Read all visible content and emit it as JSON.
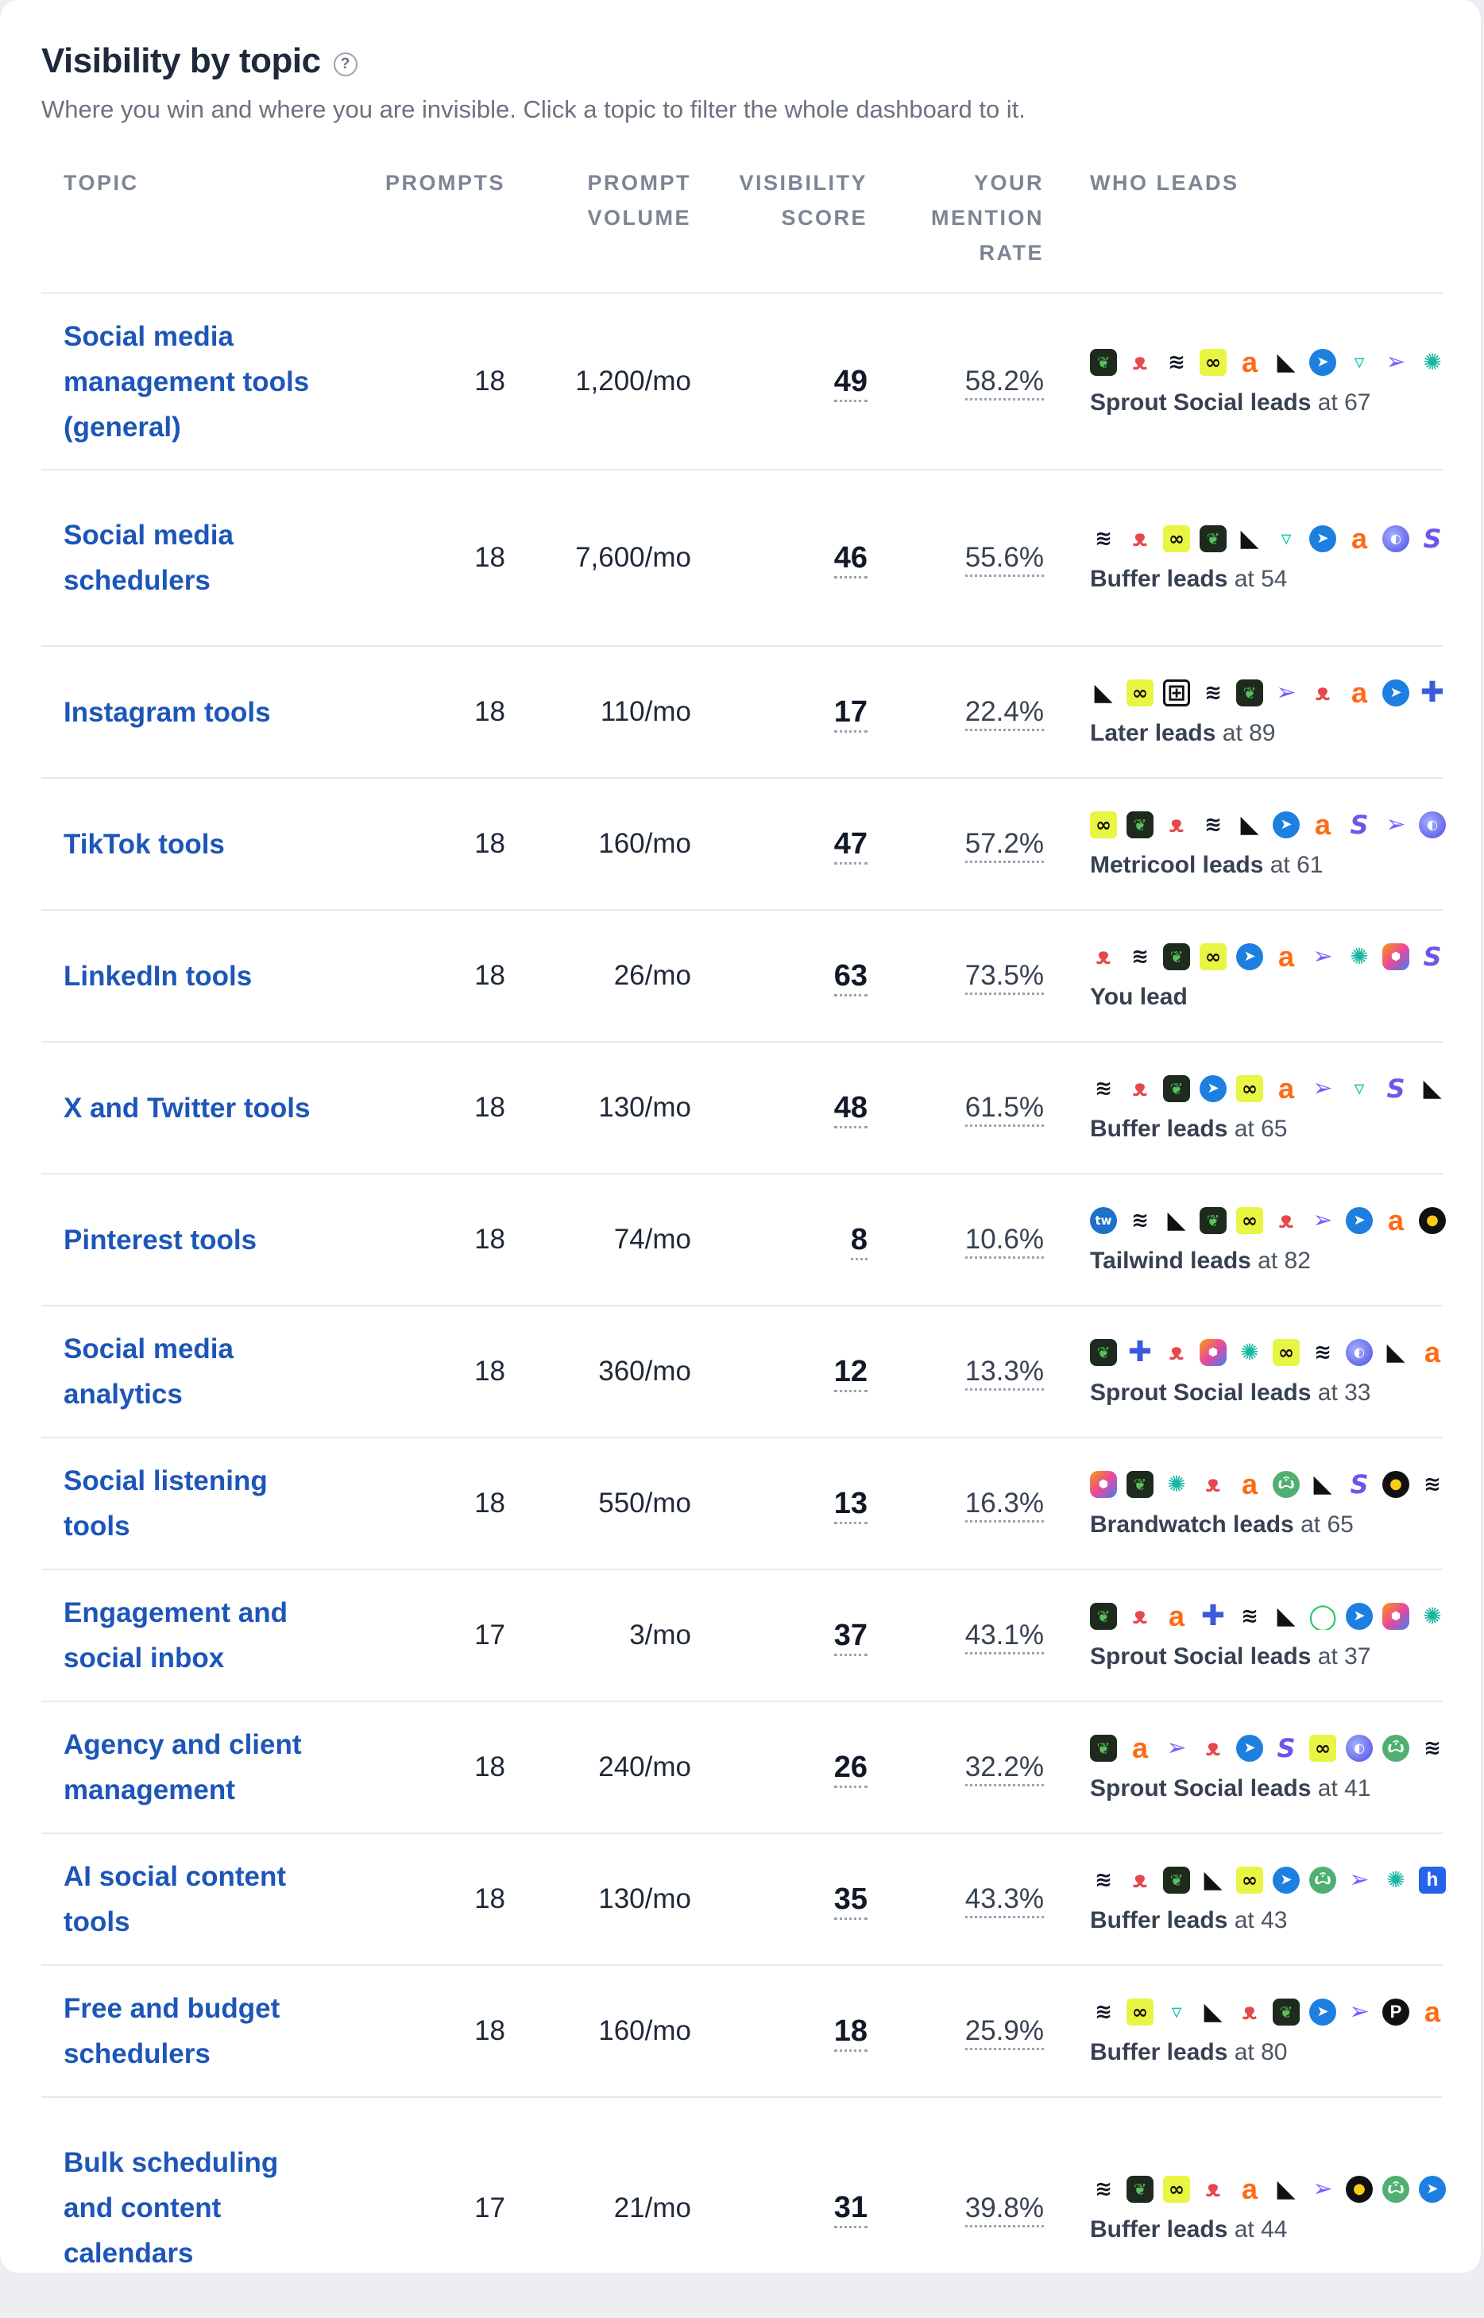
{
  "header": {
    "title": "Visibility by topic",
    "help": "?",
    "subtitle": "Where you win and where you are invisible. Click a topic to filter the whole dashboard to it."
  },
  "columns": {
    "topic": "TOPIC",
    "prompts": "PROMPTS",
    "volume_line1": "PROMPT",
    "volume_line2": "VOLUME",
    "score_line1": "VISIBILITY",
    "score_line2": "SCORE",
    "mention_line1": "YOUR",
    "mention_line2": "MENTION",
    "mention_line3": "RATE",
    "leads": "WHO LEADS"
  },
  "rows": [
    {
      "topic": "Social media management tools (general)",
      "prompts": "18",
      "volume": "1,200/mo",
      "score": "49",
      "mention": "58.2%",
      "leader": "Sprout Social leads",
      "leader_at": "at 67",
      "icons": [
        "sprout",
        "hootsuite",
        "buffer",
        "metricool",
        "later",
        "ssf",
        "telegram",
        "socialbee",
        "arrow",
        "leaf"
      ]
    },
    {
      "topic": "Social media schedulers",
      "prompts": "18",
      "volume": "7,600/mo",
      "score": "46",
      "mention": "55.6%",
      "leader": "Buffer leads",
      "leader_at": "at 54",
      "icons": [
        "buffer",
        "hootsuite",
        "metricool",
        "sprout",
        "ssf",
        "socialbee",
        "telegram",
        "later",
        "globe",
        "s"
      ]
    },
    {
      "topic": "Instagram tools",
      "prompts": "18",
      "volume": "110/mo",
      "score": "17",
      "mention": "22.4%",
      "leader": "Later leads",
      "leader_at": "at 89",
      "icons": [
        "ssf",
        "metricool",
        "grid",
        "buffer",
        "sprout",
        "arrow",
        "hootsuite",
        "later",
        "telegram",
        "plus"
      ]
    },
    {
      "topic": "TikTok tools",
      "prompts": "18",
      "volume": "160/mo",
      "score": "47",
      "mention": "57.2%",
      "leader": "Metricool leads",
      "leader_at": "at 61",
      "icons": [
        "metricool",
        "sprout",
        "hootsuite",
        "buffer",
        "ssf",
        "telegram",
        "later",
        "s",
        "arrow",
        "globe"
      ]
    },
    {
      "topic": "LinkedIn tools",
      "prompts": "18",
      "volume": "26/mo",
      "score": "63",
      "mention": "73.5%",
      "leader": "You lead",
      "leader_at": "",
      "icons": [
        "hootsuite",
        "buffer",
        "sprout",
        "metricool",
        "telegram",
        "later",
        "arrow",
        "leaf",
        "hex",
        "s"
      ]
    },
    {
      "topic": "X and Twitter tools",
      "prompts": "18",
      "volume": "130/mo",
      "score": "48",
      "mention": "61.5%",
      "leader": "Buffer leads",
      "leader_at": "at 65",
      "icons": [
        "buffer",
        "hootsuite",
        "sprout",
        "telegram",
        "metricool",
        "later",
        "arrow",
        "socialbee",
        "s",
        "ssf"
      ]
    },
    {
      "topic": "Pinterest tools",
      "prompts": "18",
      "volume": "74/mo",
      "score": "8",
      "mention": "10.6%",
      "leader": "Tailwind leads",
      "leader_at": "at 82",
      "icons": [
        "tw",
        "buffer",
        "ssf",
        "sprout",
        "metricool",
        "hootsuite",
        "arrow",
        "telegram",
        "later",
        "owl"
      ]
    },
    {
      "topic": "Social media analytics",
      "prompts": "18",
      "volume": "360/mo",
      "score": "12",
      "mention": "13.3%",
      "leader": "Sprout Social leads",
      "leader_at": "at 33",
      "icons": [
        "sprout",
        "plus",
        "hootsuite",
        "hex",
        "leaf",
        "metricool",
        "buffer",
        "globe",
        "ssf",
        "later"
      ]
    },
    {
      "topic": "Social listening tools",
      "prompts": "18",
      "volume": "550/mo",
      "score": "13",
      "mention": "16.3%",
      "leader": "Brandwatch leads",
      "leader_at": "at 65",
      "icons": [
        "hex",
        "sprout",
        "leaf",
        "hootsuite",
        "later",
        "cat",
        "ssf",
        "s",
        "owl",
        "buffer"
      ]
    },
    {
      "topic": "Engagement and social inbox",
      "prompts": "17",
      "volume": "3/mo",
      "score": "37",
      "mention": "43.1%",
      "leader": "Sprout Social leads",
      "leader_at": "at 37",
      "icons": [
        "sprout",
        "hootsuite",
        "later",
        "plus",
        "buffer",
        "ssf",
        "ring",
        "telegram",
        "hex",
        "leaf"
      ]
    },
    {
      "topic": "Agency and client management",
      "prompts": "18",
      "volume": "240/mo",
      "score": "26",
      "mention": "32.2%",
      "leader": "Sprout Social leads",
      "leader_at": "at 41",
      "icons": [
        "sprout",
        "later",
        "arrow",
        "hootsuite",
        "telegram",
        "s",
        "metricool",
        "globe",
        "cat",
        "buffer"
      ]
    },
    {
      "topic": "AI social content tools",
      "prompts": "18",
      "volume": "130/mo",
      "score": "35",
      "mention": "43.3%",
      "leader": "Buffer leads",
      "leader_at": "at 43",
      "icons": [
        "buffer",
        "hootsuite",
        "sprout",
        "ssf",
        "metricool",
        "telegram",
        "cat",
        "arrow",
        "leaf",
        "h"
      ]
    },
    {
      "topic": "Free and budget schedulers",
      "prompts": "18",
      "volume": "160/mo",
      "score": "18",
      "mention": "25.9%",
      "leader": "Buffer leads",
      "leader_at": "at 80",
      "icons": [
        "buffer",
        "metricool",
        "socialbee",
        "ssf",
        "hootsuite",
        "sprout",
        "telegram",
        "arrow",
        "p",
        "later"
      ]
    },
    {
      "topic": "Bulk scheduling and content calendars",
      "prompts": "17",
      "volume": "21/mo",
      "score": "31",
      "mention": "39.8%",
      "leader": "Buffer leads",
      "leader_at": "at 44",
      "icons": [
        "buffer",
        "sprout",
        "metricool",
        "hootsuite",
        "later",
        "ssf",
        "arrow",
        "owl",
        "cat",
        "telegram"
      ]
    }
  ],
  "icon_glyphs": {
    "sprout": "❦",
    "hootsuite": "ᴥ",
    "buffer": "≋",
    "metricool": "∞",
    "later": "a",
    "ssf": "◣",
    "telegram": "➤",
    "socialbee": "▿",
    "arrow": "➢",
    "leaf": "✺",
    "grid": "⊞",
    "plus": "✚",
    "globe": "◐",
    "s": "S",
    "hex": "⬢",
    "tw": "tw",
    "owl": "●",
    "cat": "ѽ",
    "ring": "◯",
    "h": "h",
    "p": "P"
  },
  "colors": {
    "link": "#1d56b8",
    "accent_sprout": "#59c15a",
    "accent_hootsuite": "#e5484d",
    "accent_later": "#ff6a13",
    "accent_metricool": "#e8f542"
  }
}
